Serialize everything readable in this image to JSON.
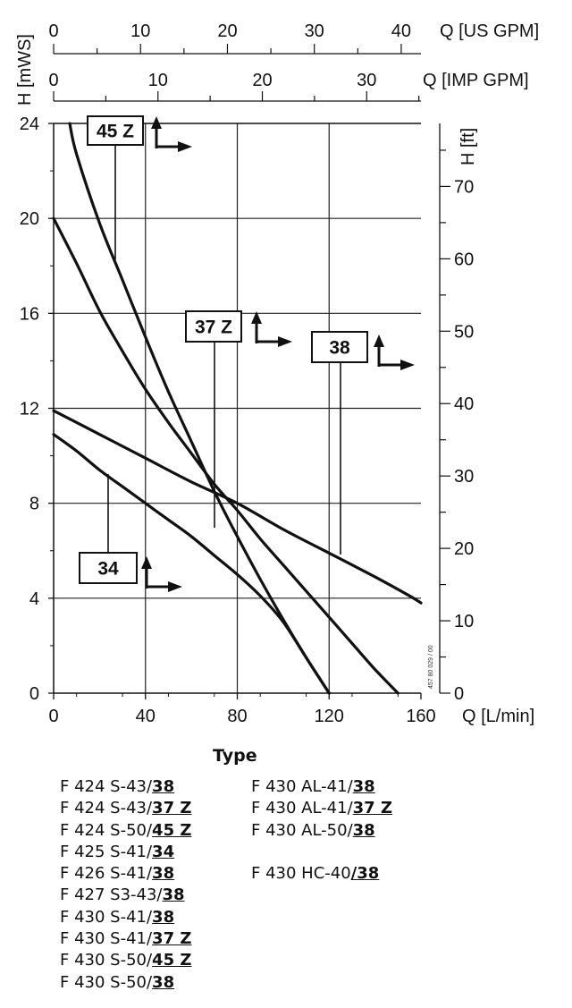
{
  "chart_data": {
    "type": "line",
    "axes": {
      "top_us_gpm": {
        "label": "Q [US GPM]",
        "range": [
          0,
          42.27
        ],
        "ticks": [
          0,
          10,
          20,
          30,
          40
        ]
      },
      "top_imp_gpm": {
        "label": "Q [IMP GPM]",
        "range": [
          0,
          35.2
        ],
        "ticks": [
          0,
          10,
          20,
          30
        ]
      },
      "bottom_flow": {
        "label": "Q [L/min]",
        "range": [
          0,
          160
        ],
        "ticks": [
          0,
          40,
          80,
          120,
          160
        ]
      },
      "left_head": {
        "label": "H [mWS]",
        "range": [
          0,
          24
        ],
        "ticks": [
          0,
          4,
          8,
          12,
          16,
          20,
          24
        ]
      },
      "right_head": {
        "label": "H [ft]",
        "range": [
          0,
          78.7
        ],
        "ticks": [
          0,
          10,
          20,
          30,
          40,
          50,
          60,
          70
        ]
      }
    },
    "grid": true,
    "series": [
      {
        "name": "45 Z",
        "x": [
          7,
          10,
          20,
          30,
          40,
          50,
          60,
          70,
          80,
          90,
          100,
          110,
          120
        ],
        "y": [
          24,
          22.7,
          19.8,
          17.4,
          15,
          12.7,
          10.6,
          8.5,
          6.6,
          4.8,
          3.1,
          1.5,
          0
        ]
      },
      {
        "name": "37 Z",
        "x": [
          0,
          10,
          20,
          30,
          40,
          50,
          60,
          70,
          80,
          90,
          100,
          110,
          120,
          130,
          140,
          150
        ],
        "y": [
          20,
          18.1,
          16.1,
          14.4,
          12.8,
          11.4,
          10.1,
          8.8,
          7.7,
          6.5,
          5.4,
          4.3,
          3.2,
          2.1,
          1,
          0
        ]
      },
      {
        "name": "38",
        "x": [
          0,
          20,
          40,
          60,
          80,
          100,
          120,
          140,
          155,
          160
        ],
        "y": [
          11.9,
          10.9,
          9.9,
          8.9,
          8,
          6.9,
          5.9,
          4.9,
          4.1,
          3.8
        ]
      },
      {
        "name": "34",
        "x": [
          0,
          10,
          20,
          30,
          40,
          50,
          60,
          70,
          80,
          90,
          100,
          110,
          120
        ],
        "y": [
          10.9,
          10.2,
          9.4,
          8.7,
          8,
          7.3,
          6.6,
          5.8,
          5,
          4.1,
          3,
          1.5,
          0
        ]
      }
    ],
    "tags": [
      "45 Z",
      "37 Z",
      "38",
      "34"
    ],
    "watermark_code": "457 80 029 / 00"
  },
  "type_section": {
    "title": "Type",
    "column1": [
      {
        "prefix": "F 424 S-43/",
        "code": "38"
      },
      {
        "prefix": "F 424 S-43/",
        "code": "37 Z"
      },
      {
        "prefix": "F 424 S-50/",
        "code": "45 Z"
      },
      {
        "prefix": "F 425 S-41/",
        "code": "34"
      },
      {
        "prefix": "F 426 S-41/",
        "code": "38"
      },
      {
        "prefix": "F 427 S3-43/",
        "code": "38"
      },
      {
        "prefix": "F 430 S-41/",
        "code": "38"
      },
      {
        "prefix": "F 430 S-41/",
        "code": "37 Z"
      },
      {
        "prefix": "F 430 S-50/",
        "code": "45 Z"
      },
      {
        "prefix": "F 430 S-50/",
        "code": "38"
      }
    ],
    "column2": [
      {
        "prefix": "F 430 AL-41/",
        "code": "38"
      },
      {
        "prefix": "F 430 AL-41/",
        "code": "37 Z"
      },
      {
        "prefix": "F 430 AL-50/",
        "code": "38"
      },
      {
        "prefix": "",
        "code": ""
      },
      {
        "prefix": "F 430 HC-40",
        "code": "/38"
      }
    ]
  },
  "colors": {
    "ink": "#111111",
    "grid": "#222222",
    "background": "#ffffff"
  }
}
